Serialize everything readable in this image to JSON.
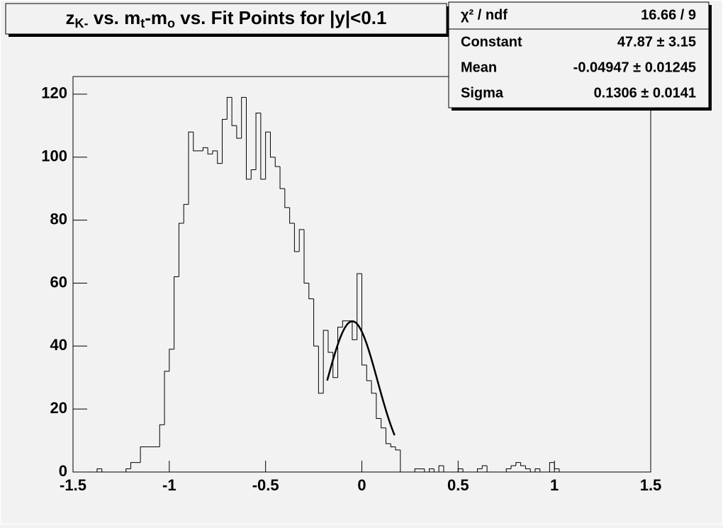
{
  "chart_data": {
    "type": "histogram",
    "title": [
      {
        "text": "z"
      },
      {
        "text": "K-",
        "sub": true
      },
      {
        "text": " vs. m"
      },
      {
        "text": "t",
        "sub": true
      },
      {
        "text": "-m"
      },
      {
        "text": "o",
        "sub": true
      },
      {
        "text": " vs. Fit Points for |y|<0.1"
      }
    ],
    "bins": [
      -1.5,
      -1.475,
      -1.45,
      -1.425,
      -1.4,
      -1.375,
      -1.35,
      -1.325,
      -1.3,
      -1.275,
      -1.25,
      -1.225,
      -1.2,
      -1.175,
      -1.15,
      -1.125,
      -1.1,
      -1.075,
      -1.05,
      -1.025,
      -1,
      -0.975,
      -0.95,
      -0.925,
      -0.9,
      -0.875,
      -0.85,
      -0.825,
      -0.8,
      -0.775,
      -0.75,
      -0.725,
      -0.7,
      -0.675,
      -0.65,
      -0.625,
      -0.6,
      -0.575,
      -0.55,
      -0.525,
      -0.5,
      -0.475,
      -0.45,
      -0.425,
      -0.4,
      -0.375,
      -0.35,
      -0.325,
      -0.3,
      -0.275,
      -0.25,
      -0.225,
      -0.2,
      -0.175,
      -0.15,
      -0.125,
      -0.1,
      -0.075,
      -0.05,
      -0.025,
      0,
      0.025,
      0.05,
      0.075,
      0.1,
      0.125,
      0.15,
      0.175,
      0.2,
      0.225,
      0.25,
      0.275,
      0.3,
      0.325,
      0.35,
      0.375,
      0.4,
      0.425,
      0.45,
      0.475,
      0.5,
      0.525,
      0.55,
      0.575,
      0.6,
      0.625,
      0.65,
      0.675,
      0.7,
      0.725,
      0.75,
      0.775,
      0.8,
      0.825,
      0.85,
      0.875,
      0.9,
      0.925,
      0.95,
      0.975,
      1,
      1.025,
      1.05,
      1.075,
      1.1,
      1.125,
      1.15,
      1.175,
      1.2,
      1.225,
      1.25,
      1.275,
      1.3,
      1.325,
      1.35,
      1.375,
      1.4,
      1.425,
      1.45,
      1.475,
      1.5
    ],
    "values": [
      0,
      0,
      0,
      0,
      0,
      1,
      0,
      0,
      0,
      0,
      0,
      1,
      3,
      3,
      8,
      8,
      8,
      8,
      15,
      32,
      39,
      62,
      79,
      85,
      108,
      102,
      102,
      103,
      101,
      102,
      98,
      112,
      119,
      110,
      106,
      119,
      93,
      96,
      114,
      93,
      108,
      100,
      97,
      90,
      84,
      79,
      70,
      77,
      60,
      55,
      40,
      25,
      45,
      38,
      30,
      46,
      48,
      48,
      42,
      63,
      34,
      29,
      25,
      17,
      14,
      9,
      8,
      7,
      0,
      0,
      0,
      1,
      1,
      0,
      1,
      0,
      2,
      0,
      0,
      0,
      1,
      0,
      0,
      0,
      1,
      2,
      0,
      0,
      0,
      0,
      1,
      2,
      3,
      2,
      1,
      0,
      1,
      0,
      0,
      3,
      1,
      0,
      0,
      0,
      0,
      0,
      0,
      0,
      0,
      0,
      0,
      0,
      0,
      0,
      0,
      0,
      0,
      0,
      0,
      0
    ],
    "color": "#000000",
    "xlim": [
      -1.5,
      1.5
    ],
    "xticks": [
      -1.5,
      -1,
      -0.5,
      0,
      0.5,
      1,
      1.5
    ],
    "ylim": [
      0,
      125.6
    ],
    "yticks": [
      0,
      20,
      40,
      60,
      80,
      100,
      120
    ],
    "fit": {
      "range": [
        -0.18,
        0.17
      ],
      "color": "#000000"
    },
    "stats": {
      "chi2_label": "χ² / ndf",
      "chi2_value": "16.66 / 9",
      "labels": [
        "Constant",
        "Mean",
        "Sigma"
      ],
      "values": [
        47.87,
        -0.04947,
        0.1306
      ],
      "errors": [
        3.15,
        0.01245,
        0.0141
      ],
      "value_labels": [
        "47.87 ± 3.15",
        "-0.04947 ± 0.01245",
        "0.1306 ± 0.0141"
      ]
    }
  }
}
